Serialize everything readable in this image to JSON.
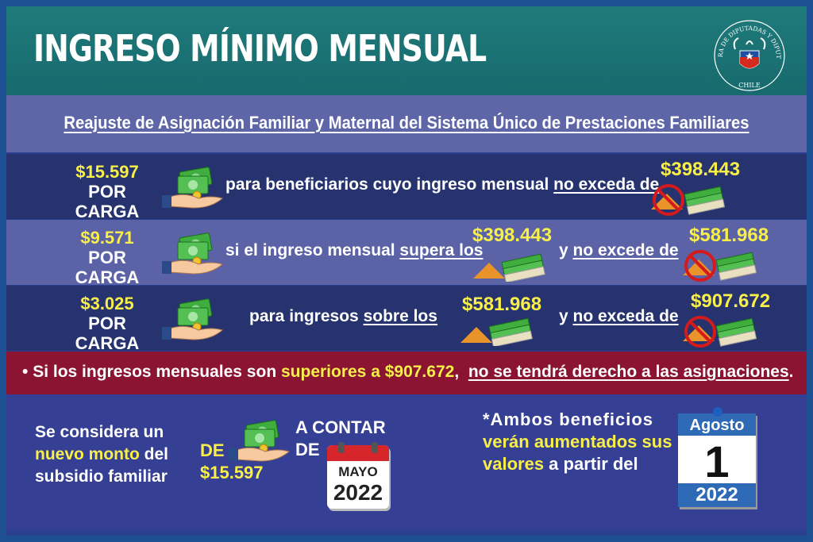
{
  "header": {
    "title": "INGRESO MÍNIMO MENSUAL",
    "seal_text_top": "CÁMARA DE DIPUTADAS Y DIPUTADOS",
    "seal_text_bottom": "CHILE"
  },
  "subtitle": "Reajuste de Asignación Familiar y Maternal del Sistema Único de Prestaciones Familiares",
  "rows": [
    {
      "amount": "$15.597",
      "per": "POR CARGA",
      "text_a": "para beneficiarios cuyo ingreso mensual ",
      "text_a_u": "no exceda de",
      "limit_1": "$398.443"
    },
    {
      "amount": "$9.571",
      "per": "POR CARGA",
      "text_a": "si el ingreso mensual ",
      "text_a_u": "supera los",
      "limit_1": "$398.443",
      "text_b": "y ",
      "text_b_u": "no excede de",
      "limit_2": "$581.968"
    },
    {
      "amount": "$3.025",
      "per": "POR CARGA",
      "text_a": "para ingresos ",
      "text_a_u": "sobre los",
      "limit_1": "$581.968",
      "text_b": "y ",
      "text_b_u": "no exceda de",
      "limit_2": "$907.672"
    }
  ],
  "warning": {
    "bullet": "•",
    "text_a": "Si los ingresos mensuales son ",
    "text_highlight": "superiores a $907.672",
    "text_comma": ",",
    "text_u": "no se tendrá derecho a las asignaciones",
    "text_end": "."
  },
  "bottom": {
    "left_a": "Se considera un",
    "left_hl": "nuevo monto",
    "left_b": " del",
    "left_c": "subsidio familiar",
    "de": "DE",
    "monto": "$15.597",
    "a_contar": "A CONTAR",
    "de2": "DE",
    "cal_month": "MAYO",
    "cal_year": "2022",
    "note_a": "*Ambos beneficios",
    "note_hl1": "verán aumentados sus",
    "note_hl2": "valores",
    "note_b": " a partir del",
    "cal2_month": "Agosto",
    "cal2_day": "1",
    "cal2_year": "2022"
  },
  "colors": {
    "header_teal": "#1f7a7a",
    "row_dark": "#26336f",
    "row_light": "#5b62a6",
    "warning_red": "#8a1431",
    "highlight_yellow": "#f8ef4a",
    "money_green": "#3fae3f"
  }
}
